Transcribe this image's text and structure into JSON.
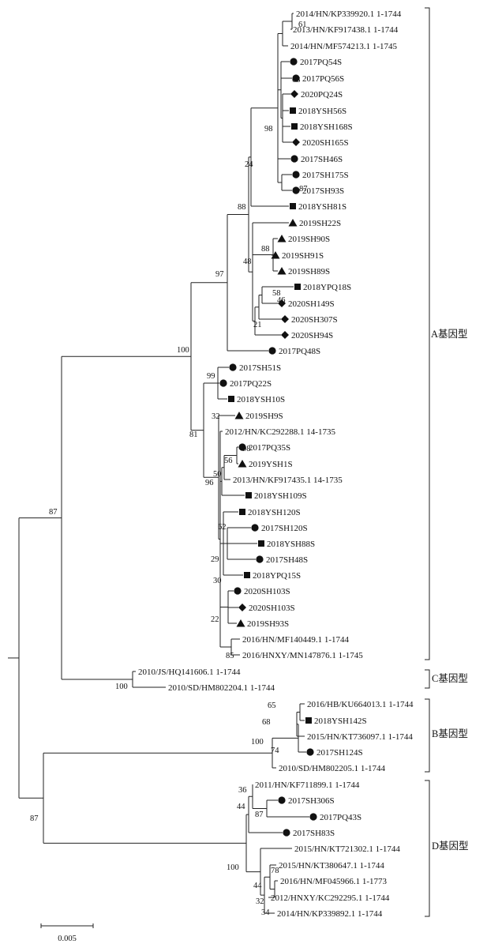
{
  "figure": {
    "scale_bar_label": "0.005",
    "genotypes": [
      {
        "label": "A基因型"
      },
      {
        "label": "C基因型"
      },
      {
        "label": "B基因型"
      },
      {
        "label": "D基因型"
      }
    ],
    "leaves": [
      {
        "name": "2014/HN/KP339920.1 1-1744",
        "marker": "none"
      },
      {
        "name": "2013/HN/KF917438.1 1-1744",
        "marker": "none"
      },
      {
        "name": "2014/HN/MF574213.1 1-1745",
        "marker": "none"
      },
      {
        "name": "2017PQ54S",
        "marker": "circle"
      },
      {
        "name": "2017PQ56S",
        "marker": "circle"
      },
      {
        "name": "2020PQ24S",
        "marker": "diamond"
      },
      {
        "name": "2018YSH56S",
        "marker": "square"
      },
      {
        "name": "2018YSH168S",
        "marker": "square"
      },
      {
        "name": "2020SH165S",
        "marker": "diamond"
      },
      {
        "name": "2017SH46S",
        "marker": "circle"
      },
      {
        "name": "2017SH175S",
        "marker": "circle"
      },
      {
        "name": "2017SH93S",
        "marker": "circle"
      },
      {
        "name": "2018YSH81S",
        "marker": "square"
      },
      {
        "name": "2019SH22S",
        "marker": "triangle"
      },
      {
        "name": "2019SH90S",
        "marker": "triangle"
      },
      {
        "name": "2019SH91S",
        "marker": "triangle"
      },
      {
        "name": "2019SH89S",
        "marker": "triangle"
      },
      {
        "name": "2018YPQ18S",
        "marker": "square"
      },
      {
        "name": "2020SH149S",
        "marker": "diamond"
      },
      {
        "name": "2020SH307S",
        "marker": "diamond"
      },
      {
        "name": "2020SH94S",
        "marker": "diamond"
      },
      {
        "name": "2017PQ48S",
        "marker": "circle"
      },
      {
        "name": "2017SH51S",
        "marker": "circle"
      },
      {
        "name": "2017PQ22S",
        "marker": "circle"
      },
      {
        "name": "2018YSH10S",
        "marker": "square"
      },
      {
        "name": "2019SH9S",
        "marker": "triangle"
      },
      {
        "name": "2012/HN/KC292288.1 14-1735",
        "marker": "none"
      },
      {
        "name": "2017PQ35S",
        "marker": "circle"
      },
      {
        "name": "2019YSH1S",
        "marker": "triangle"
      },
      {
        "name": "2013/HN/KF917435.1 14-1735",
        "marker": "none"
      },
      {
        "name": "2018YSH109S",
        "marker": "square"
      },
      {
        "name": "2018YSH120S",
        "marker": "square"
      },
      {
        "name": "2017SH120S",
        "marker": "circle"
      },
      {
        "name": "2018YSH88S",
        "marker": "square"
      },
      {
        "name": "2017SH48S",
        "marker": "circle"
      },
      {
        "name": "2018YPQ15S",
        "marker": "square"
      },
      {
        "name": "2020SH103S",
        "marker": "circle"
      },
      {
        "name": "2020SH103S",
        "marker": "diamond"
      },
      {
        "name": "2019SH93S",
        "marker": "triangle"
      },
      {
        "name": "2016/HN/MF140449.1 1-1744",
        "marker": "none"
      },
      {
        "name": "2016/HNXY/MN147876.1 1-1745",
        "marker": "none"
      },
      {
        "name": "2010/JS/HQ141606.1 1-1744",
        "marker": "none"
      },
      {
        "name": "2010/SD/HM802204.1 1-1744",
        "marker": "none"
      },
      {
        "name": "2016/HB/KU664013.1 1-1744",
        "marker": "none"
      },
      {
        "name": "2018YSH142S",
        "marker": "square"
      },
      {
        "name": "2015/HN/KT736097.1 1-1744",
        "marker": "none"
      },
      {
        "name": "2017SH124S",
        "marker": "circle"
      },
      {
        "name": "2010/SD/HM802205.1 1-1744",
        "marker": "none"
      },
      {
        "name": "2011/HN/KF711899.1 1-1744",
        "marker": "none"
      },
      {
        "name": "2017SH306S",
        "marker": "circle"
      },
      {
        "name": "2017PQ43S",
        "marker": "circle"
      },
      {
        "name": "2017SH83S",
        "marker": "circle"
      },
      {
        "name": "2015/HN/KT721302.1 1-1744",
        "marker": "none"
      },
      {
        "name": "2015/HN/KT380647.1 1-1744",
        "marker": "none"
      },
      {
        "name": "2016/HN/MF045966.1 1-1773",
        "marker": "none"
      },
      {
        "name": "2012/HNXY/KC292295.1 1-1744",
        "marker": "none"
      },
      {
        "name": "2014/HN/KP339892.1 1-1744",
        "marker": "none"
      }
    ],
    "bootstrap_values": [
      "61",
      "63",
      "98",
      "24",
      "87",
      "88",
      "88",
      "48",
      "58",
      "46",
      "21",
      "97",
      "100",
      "99",
      "32",
      "81",
      "98",
      "56",
      "50",
      "96",
      "62",
      "29",
      "30",
      "22",
      "85",
      "87",
      "100",
      "65",
      "68",
      "100",
      "74",
      "87",
      "36",
      "87",
      "44",
      "100",
      "78",
      "44",
      "32",
      "34"
    ]
  }
}
